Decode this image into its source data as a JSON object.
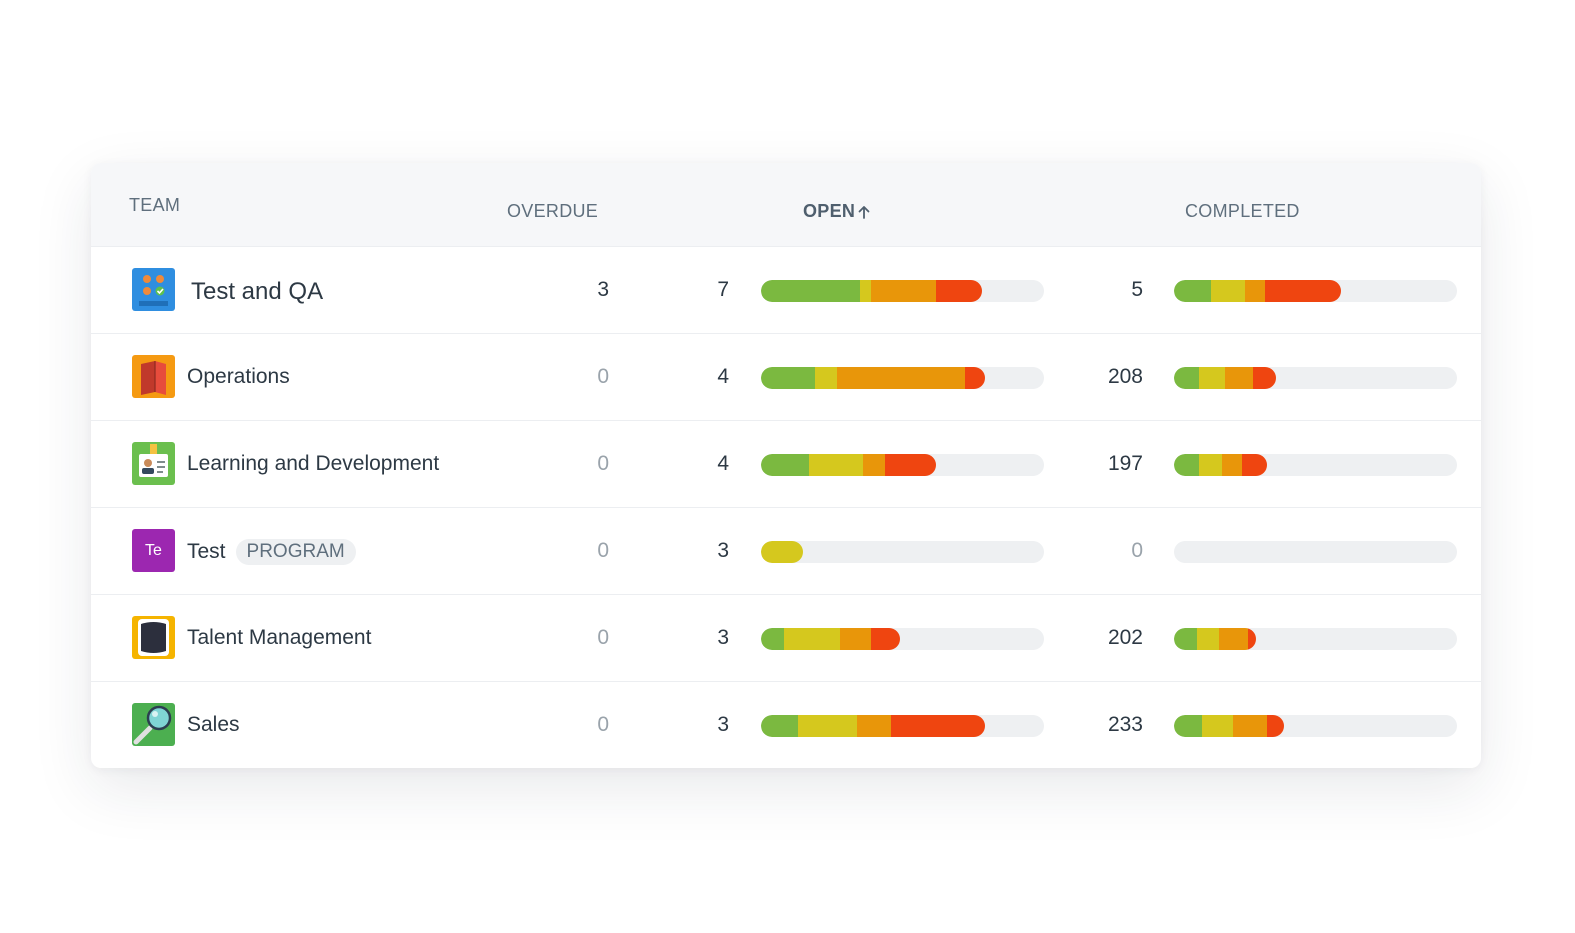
{
  "headers": {
    "team": "TEAM",
    "overdue": "OVERDUE",
    "open": "OPEN",
    "completed": "COMPLETED"
  },
  "colors": {
    "green": "#7bb940",
    "yellow": "#d5c81e",
    "orange": "#e8960a",
    "red": "#ef4510",
    "track": "#eef0f2",
    "program_avatar": "#9c27b0"
  },
  "rows": [
    {
      "team": "Test and QA",
      "icon": "checklist-icon",
      "overdue": "3",
      "open": "7",
      "completed": "5",
      "open_fill": 0.78,
      "open_segments": [
        0.35,
        0.04,
        0.23,
        0.16
      ],
      "completed_fill": 0.59,
      "completed_segments": [
        0.13,
        0.12,
        0.07,
        0.27
      ]
    },
    {
      "team": "Operations",
      "icon": "book-icon",
      "overdue": "0",
      "open": "4",
      "completed": "208",
      "open_fill": 0.79,
      "open_segments": [
        0.19,
        0.08,
        0.45,
        0.07
      ],
      "completed_fill": 0.36,
      "completed_segments": [
        0.09,
        0.09,
        0.1,
        0.08
      ]
    },
    {
      "team": "Learning and Development",
      "icon": "id-badge-icon",
      "overdue": "0",
      "open": "4",
      "completed": "197",
      "open_fill": 0.62,
      "open_segments": [
        0.17,
        0.19,
        0.08,
        0.18
      ],
      "completed_fill": 0.33,
      "completed_segments": [
        0.09,
        0.08,
        0.07,
        0.09
      ]
    },
    {
      "team": "Test",
      "badge": "PROGRAM",
      "icon": "te-avatar-icon",
      "avatar_text": "Te",
      "overdue": "0",
      "open": "3",
      "completed": "0",
      "open_fill": 0.15,
      "open_segments": [
        0,
        0.15,
        0,
        0
      ],
      "completed_fill": 0,
      "completed_segments": [
        0,
        0,
        0,
        0
      ]
    },
    {
      "team": "Talent Management",
      "icon": "tablet-icon",
      "overdue": "0",
      "open": "3",
      "completed": "202",
      "open_fill": 0.49,
      "open_segments": [
        0.08,
        0.2,
        0.11,
        0.1
      ],
      "completed_fill": 0.29,
      "completed_segments": [
        0.08,
        0.08,
        0.1,
        0.03
      ]
    },
    {
      "team": "Sales",
      "icon": "magnifier-icon",
      "overdue": "0",
      "open": "3",
      "completed": "233",
      "open_fill": 0.79,
      "open_segments": [
        0.13,
        0.21,
        0.12,
        0.33
      ],
      "completed_fill": 0.39,
      "completed_segments": [
        0.1,
        0.11,
        0.12,
        0.06
      ]
    }
  ]
}
